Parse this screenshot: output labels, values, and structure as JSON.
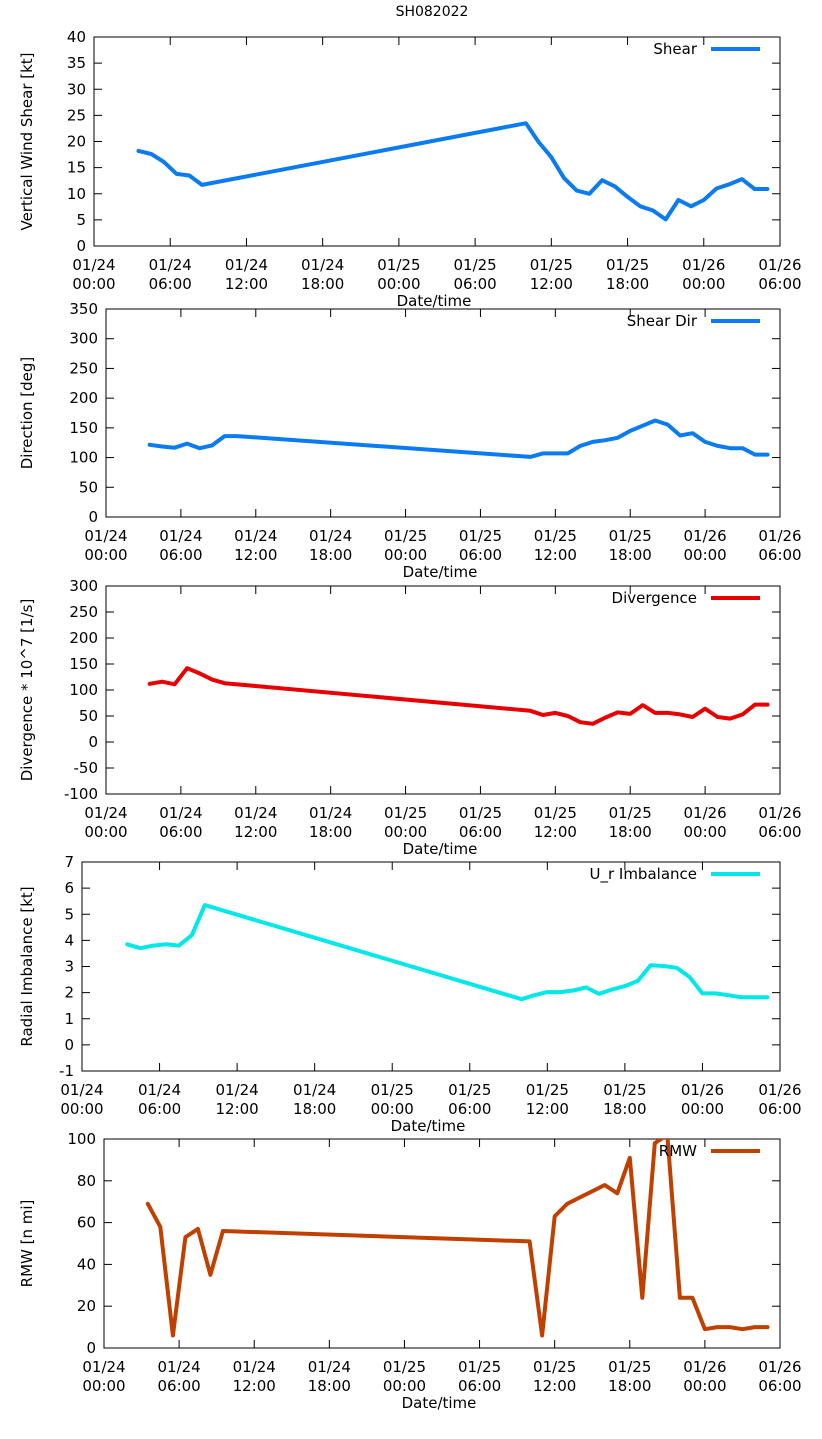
{
  "title": "SH082022",
  "time_tick_labels": [
    [
      "01/24",
      "00:00"
    ],
    [
      "01/24",
      "06:00"
    ],
    [
      "01/24",
      "12:00"
    ],
    [
      "01/24",
      "18:00"
    ],
    [
      "01/25",
      "00:00"
    ],
    [
      "01/25",
      "06:00"
    ],
    [
      "01/25",
      "12:00"
    ],
    [
      "01/25",
      "18:00"
    ],
    [
      "01/26",
      "00:00"
    ],
    [
      "01/26",
      "06:00"
    ]
  ],
  "chart_data": [
    {
      "type": "line",
      "title": "",
      "xlabel": "Date/time",
      "ylabel": "Vertical Wind Shear [kt]",
      "x_unit": "hours since 01/24 00:00",
      "xlim": [
        0,
        54
      ],
      "ylim": [
        0,
        40
      ],
      "yticks": [
        "0",
        "5",
        "10",
        "15",
        "20",
        "25",
        "30",
        "35",
        "40"
      ],
      "legend_position": "top-right",
      "series": [
        {
          "name": "Shear",
          "color": "#0a7bf0",
          "x": [
            3.5,
            4.5,
            5.5,
            6.5,
            7.5,
            8.5,
            34,
            35,
            36,
            37,
            38,
            39,
            40,
            41,
            42,
            43,
            44,
            45,
            46,
            47,
            48,
            49,
            50,
            51,
            52,
            53
          ],
          "y": [
            18.2,
            17.6,
            16.1,
            13.8,
            13.5,
            11.7,
            23.5,
            19.9,
            17.0,
            13.0,
            10.6,
            10.0,
            12.6,
            11.4,
            9.4,
            7.6,
            6.8,
            5.1,
            8.8,
            7.6,
            8.8,
            11.0,
            11.8,
            12.8,
            10.9,
            10.9
          ]
        }
      ]
    },
    {
      "type": "line",
      "title": "",
      "xlabel": "Date/time",
      "ylabel": "Direction [deg]",
      "x_unit": "hours since 01/24 00:00",
      "xlim": [
        0,
        54
      ],
      "ylim": [
        0,
        360
      ],
      "yticks": [
        "0",
        "50",
        "100",
        "150",
        "200",
        "250",
        "300",
        "350"
      ],
      "legend_position": "top-right",
      "series": [
        {
          "name": "Shear Dir",
          "color": "#0a7bf0",
          "x": [
            3.5,
            4.5,
            5.5,
            6.5,
            7.5,
            8.5,
            9.5,
            10.5,
            34,
            35,
            36,
            37,
            38,
            39,
            40,
            41,
            42,
            43,
            44,
            45,
            46,
            47,
            48,
            49,
            50,
            51,
            52,
            53
          ],
          "y": [
            125,
            122,
            120,
            127,
            119,
            124,
            140,
            140,
            104,
            110,
            110,
            110,
            123,
            130,
            133,
            137,
            149,
            158,
            167,
            160,
            141,
            145,
            130,
            123,
            119,
            119,
            108,
            108
          ]
        }
      ]
    },
    {
      "type": "line",
      "title": "",
      "xlabel": "Date/time",
      "ylabel": "Divergence * 10^7 [1/s]",
      "x_unit": "hours since 01/24 00:00",
      "xlim": [
        0,
        54
      ],
      "ylim": [
        -100,
        300
      ],
      "yticks": [
        "-100",
        "-50",
        "0",
        "50",
        "100",
        "150",
        "200",
        "250",
        "300"
      ],
      "legend_position": "top-right",
      "series": [
        {
          "name": "Divergence",
          "color": "#e80000",
          "x": [
            3.5,
            4.5,
            5.5,
            6.5,
            7.5,
            8.5,
            9.5,
            34,
            35,
            36,
            37,
            38,
            39,
            40,
            41,
            42,
            43,
            44,
            45,
            46,
            47,
            48,
            49,
            50,
            51,
            52,
            53
          ],
          "y": [
            112,
            116,
            111,
            142,
            132,
            120,
            113,
            60,
            52,
            56,
            50,
            38,
            35,
            47,
            57,
            54,
            71,
            56,
            56,
            53,
            48,
            64,
            48,
            45,
            53,
            72,
            72
          ]
        }
      ]
    },
    {
      "type": "line",
      "title": "",
      "xlabel": "Date/time",
      "ylabel": "Radial Imbalance [kt]",
      "x_unit": "hours since 01/24 00:00",
      "xlim": [
        0,
        54
      ],
      "ylim": [
        -1,
        7
      ],
      "yticks": [
        "-1",
        "0",
        "1",
        "2",
        "3",
        "4",
        "5",
        "6",
        "7"
      ],
      "legend_position": "top-right",
      "series": [
        {
          "name": "U_r Imbalance",
          "color": "#00e8e8",
          "x": [
            3.5,
            4.5,
            5.5,
            6.5,
            7.5,
            8.5,
            9.5,
            34,
            35,
            36,
            37,
            38,
            39,
            40,
            41,
            42,
            43,
            44,
            45,
            46,
            47,
            48,
            49,
            50,
            51,
            52,
            53
          ],
          "y": [
            3.85,
            3.7,
            3.8,
            3.85,
            3.8,
            4.2,
            5.35,
            1.75,
            1.9,
            2.02,
            2.02,
            2.08,
            2.2,
            1.95,
            2.12,
            2.25,
            2.45,
            3.05,
            3.02,
            2.95,
            2.6,
            1.97,
            1.97,
            1.9,
            1.82,
            1.82,
            1.82
          ]
        }
      ]
    },
    {
      "type": "line",
      "title": "",
      "xlabel": "Date/time",
      "ylabel": "RMW [n mi]",
      "x_unit": "hours since 01/24 00:00",
      "xlim": [
        0,
        54
      ],
      "ylim": [
        0,
        100
      ],
      "yticks": [
        "0",
        "20",
        "40",
        "60",
        "80",
        "100"
      ],
      "legend_position": "top-right",
      "series": [
        {
          "name": "RMW",
          "color": "#c04000",
          "x": [
            3.5,
            4.5,
            5.5,
            6.5,
            7.5,
            8.5,
            9.5,
            34,
            35,
            36,
            37,
            38,
            39,
            40,
            41,
            42,
            43,
            44,
            45,
            46,
            47,
            48,
            49,
            50,
            51,
            52,
            53
          ],
          "y": [
            69,
            58,
            6,
            53,
            57,
            35,
            56,
            51,
            6,
            63,
            69,
            72,
            75,
            78,
            74,
            91,
            24,
            98,
            102,
            24,
            24,
            9,
            10,
            10,
            9,
            10,
            10
          ]
        }
      ]
    }
  ]
}
